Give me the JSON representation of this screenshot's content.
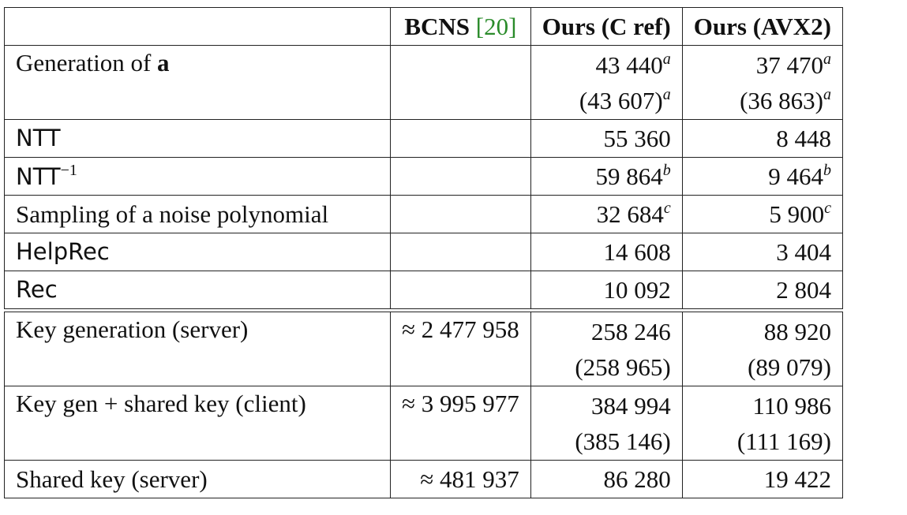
{
  "header": {
    "col1": "",
    "col2_label": "BCNS",
    "col2_cite": "[20]",
    "col3": "Ours (C ref)",
    "col4": "Ours (AVX2)"
  },
  "colors": {
    "citation": "#2a8b2a"
  },
  "rows": [
    {
      "label_pre": "Generation of ",
      "label_bold": "a",
      "bcns": "",
      "cref": "43 440",
      "cref_sup": "a",
      "cref2": "(43 607)",
      "cref2_sup": "a",
      "avx": "37 470",
      "avx_sup": "a",
      "avx2": "(36 863)",
      "avx2_sup": "a"
    },
    {
      "label": "NTT",
      "bcns": "",
      "cref": "55 360",
      "avx": "8 448"
    },
    {
      "label": "NTT",
      "label_sup": "−1",
      "bcns": "",
      "cref": "59 864",
      "cref_sup": "b",
      "avx": "9 464",
      "avx_sup": "b"
    },
    {
      "label": "Sampling of a noise polynomial",
      "bcns": "",
      "cref": "32 684",
      "cref_sup": "c",
      "avx": "5 900",
      "avx_sup": "c"
    },
    {
      "label": "HelpRec",
      "bcns": "",
      "cref": "14 608",
      "avx": "3 404"
    },
    {
      "label": "Rec",
      "bcns": "",
      "cref": "10 092",
      "avx": "2 804"
    },
    {
      "label": "Key generation (server)",
      "bcns": "≈ 2 477 958",
      "cref": "258 246",
      "cref2": "(258 965)",
      "avx": "88 920",
      "avx2": "(89 079)"
    },
    {
      "label": "Key gen + shared key (client)",
      "bcns": "≈ 3 995 977",
      "cref": "384 994",
      "cref2": "(385 146)",
      "avx": "110 986",
      "avx2": "(111 169)"
    },
    {
      "label": "Shared key (server)",
      "bcns": "≈ 481 937",
      "cref": "86 280",
      "avx": "19 422"
    }
  ]
}
